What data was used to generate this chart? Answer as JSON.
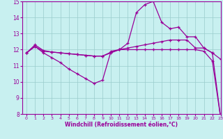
{
  "xlabel": "Windchill (Refroidissement éolien,°C)",
  "background_color": "#c8f0f0",
  "line_color": "#990099",
  "grid_color": "#99cccc",
  "xlim": [
    -0.5,
    23
  ],
  "ylim": [
    8,
    15
  ],
  "yticks": [
    8,
    9,
    10,
    11,
    12,
    13,
    14,
    15
  ],
  "xticks": [
    0,
    1,
    2,
    3,
    4,
    5,
    6,
    7,
    8,
    9,
    10,
    11,
    12,
    13,
    14,
    15,
    16,
    17,
    18,
    19,
    20,
    21,
    22,
    23
  ],
  "series": [
    {
      "x": [
        0,
        1,
        2,
        3,
        4,
        5,
        6,
        7,
        8,
        9,
        10,
        11,
        12,
        13,
        14,
        15,
        16,
        17,
        18,
        19,
        20,
        21,
        22,
        23
      ],
      "y": [
        11.8,
        12.3,
        11.95,
        11.85,
        11.8,
        11.75,
        11.7,
        11.65,
        11.6,
        11.6,
        11.8,
        12.0,
        12.4,
        14.3,
        14.8,
        15.0,
        13.7,
        13.3,
        13.4,
        12.8,
        12.8,
        12.1,
        11.8,
        11.4
      ]
    },
    {
      "x": [
        0,
        1,
        2,
        3,
        4,
        5,
        6,
        7,
        8,
        9,
        10,
        11,
        12,
        13,
        14,
        15,
        16,
        17,
        18,
        19,
        20,
        21,
        22,
        23
      ],
      "y": [
        11.8,
        12.2,
        11.9,
        11.85,
        11.8,
        11.75,
        11.7,
        11.65,
        11.6,
        11.6,
        11.85,
        12.0,
        12.1,
        12.2,
        12.3,
        12.4,
        12.5,
        12.6,
        12.6,
        12.6,
        12.1,
        12.1,
        11.8,
        7.7
      ]
    },
    {
      "x": [
        0,
        1,
        2,
        3,
        4,
        5,
        6,
        7,
        8,
        9,
        10,
        11,
        12,
        13,
        14,
        15,
        16,
        17,
        18,
        19,
        20,
        21,
        22,
        23
      ],
      "y": [
        11.8,
        12.2,
        11.8,
        11.5,
        11.2,
        10.8,
        10.5,
        10.2,
        9.9,
        10.1,
        11.9,
        12.0,
        12.0,
        12.0,
        12.0,
        12.0,
        12.0,
        12.0,
        12.0,
        12.0,
        12.0,
        11.9,
        11.3,
        7.7
      ]
    }
  ]
}
